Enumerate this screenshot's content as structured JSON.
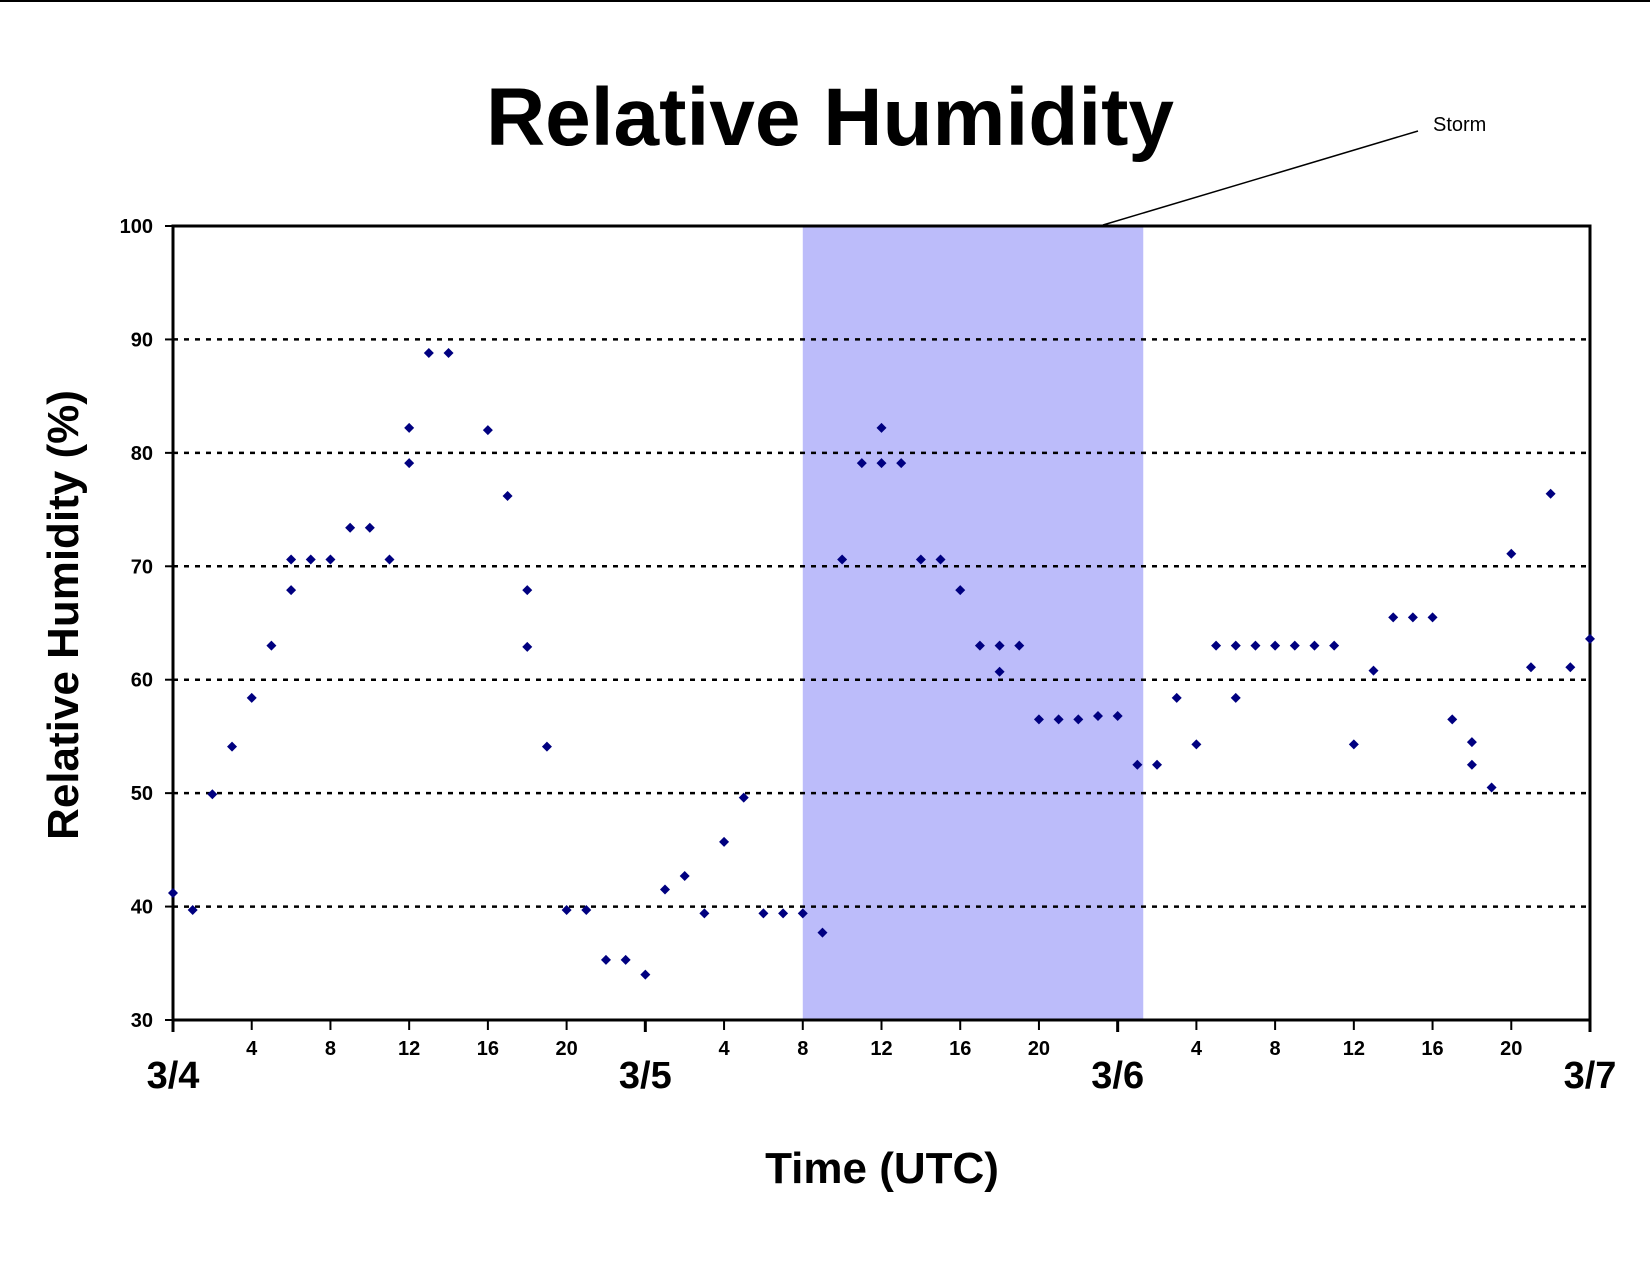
{
  "chart_data": {
    "type": "scatter",
    "title": "Relative Humidity",
    "xlabel": "Time (UTC)",
    "ylabel": "Relative Humidity (%)",
    "ylim": [
      30,
      100
    ],
    "yticks": [
      30,
      40,
      50,
      60,
      70,
      80,
      90,
      100
    ],
    "xlim_hours": [
      0,
      72
    ],
    "hour_ticks": [
      {
        "h": 4,
        "label": "4"
      },
      {
        "h": 8,
        "label": "8"
      },
      {
        "h": 12,
        "label": "12"
      },
      {
        "h": 16,
        "label": "16"
      },
      {
        "h": 20,
        "label": "20"
      },
      {
        "h": 28,
        "label": "4"
      },
      {
        "h": 32,
        "label": "8"
      },
      {
        "h": 36,
        "label": "12"
      },
      {
        "h": 40,
        "label": "16"
      },
      {
        "h": 44,
        "label": "20"
      },
      {
        "h": 52,
        "label": "4"
      },
      {
        "h": 56,
        "label": "8"
      },
      {
        "h": 60,
        "label": "12"
      },
      {
        "h": 64,
        "label": "16"
      },
      {
        "h": 68,
        "label": "20"
      }
    ],
    "date_ticks": [
      {
        "h": 0,
        "label": "3/4"
      },
      {
        "h": 24,
        "label": "3/5"
      },
      {
        "h": 48,
        "label": "3/6"
      },
      {
        "h": 72,
        "label": "3/7"
      }
    ],
    "grid": "horizontal dotted",
    "shaded_region": {
      "label": "Storm",
      "start_hour": 32,
      "end_hour": 49.3,
      "color": "#bcbcfa"
    },
    "marker_color": "#000080",
    "x_hours": [
      0,
      1,
      2,
      3,
      4,
      5,
      6,
      6,
      7,
      8,
      9,
      10,
      11,
      12,
      12,
      13,
      14,
      16,
      17,
      18,
      18,
      19,
      20,
      21,
      22,
      23,
      24,
      25,
      26,
      27,
      28,
      29,
      30,
      31,
      32,
      33,
      34,
      35,
      36,
      36,
      37,
      38,
      39,
      40,
      41,
      42,
      42,
      43,
      44,
      45,
      46,
      47,
      48,
      49,
      50,
      51,
      52,
      53,
      54,
      54,
      55,
      56,
      57,
      58,
      59,
      60,
      61,
      62,
      63,
      64,
      65,
      66,
      66,
      67,
      68,
      69,
      70,
      71,
      72
    ],
    "values": [
      41.2,
      39.7,
      49.9,
      54.1,
      58.4,
      63.0,
      70.6,
      67.9,
      70.6,
      70.6,
      73.4,
      73.4,
      70.6,
      82.2,
      79.1,
      88.8,
      88.8,
      82.0,
      76.2,
      67.9,
      62.9,
      54.1,
      39.7,
      39.7,
      35.3,
      35.3,
      34.0,
      41.5,
      42.7,
      39.4,
      45.7,
      49.6,
      39.4,
      39.4,
      39.4,
      37.7,
      70.6,
      79.1,
      82.2,
      79.1,
      79.1,
      70.6,
      70.6,
      67.9,
      63.0,
      63.0,
      60.7,
      63.0,
      56.5,
      56.5,
      56.5,
      56.8,
      56.8,
      52.5,
      52.5,
      58.4,
      54.3,
      63.0,
      63.0,
      58.4,
      63.0,
      63.0,
      63.0,
      63.0,
      63.0,
      54.3,
      60.8,
      65.5,
      65.5,
      65.5,
      56.5,
      54.5,
      52.5,
      50.5,
      71.1,
      61.1,
      76.4,
      61.1,
      63.6
    ]
  }
}
